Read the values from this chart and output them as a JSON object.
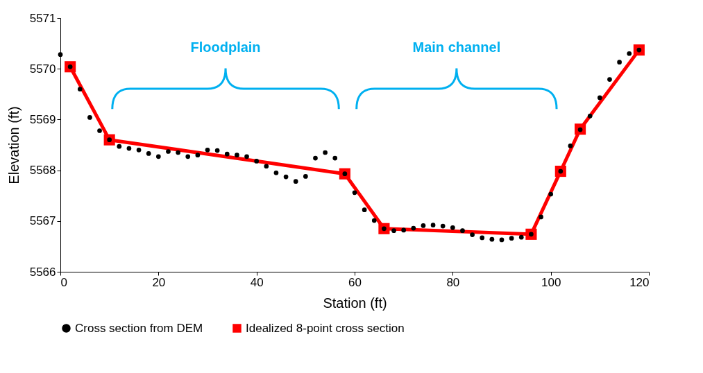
{
  "chart_data": {
    "type": "scatter",
    "xlabel": "Station (ft)",
    "ylabel": "Elevation (ft)",
    "xlim": [
      0,
      120
    ],
    "xticks": [
      0,
      20,
      40,
      60,
      80,
      100,
      120
    ],
    "ylim": [
      5566,
      5571
    ],
    "yticks": [
      5566,
      5567,
      5568,
      5569,
      5570,
      5571
    ],
    "grid": false,
    "legend": "bottom",
    "annotations": [
      "Floodplain",
      "Main channel"
    ],
    "series": [
      {
        "name": "Cross section from DEM",
        "marker": "circle",
        "color": "#000000",
        "x": [
          0,
          2,
          4,
          6,
          8,
          10,
          12,
          14,
          16,
          18,
          20,
          22,
          24,
          26,
          28,
          30,
          32,
          34,
          36,
          38,
          40,
          42,
          44,
          46,
          48,
          50,
          52,
          54,
          56,
          58,
          60,
          62,
          64,
          66,
          68,
          70,
          72,
          74,
          76,
          78,
          80,
          82,
          84,
          86,
          88,
          90,
          92,
          94,
          96,
          98,
          100,
          102,
          104,
          106,
          108,
          110,
          112,
          114,
          116,
          118
        ],
        "values": [
          5570.28,
          5570.04,
          5569.6,
          5569.04,
          5568.78,
          5568.6,
          5568.47,
          5568.43,
          5568.4,
          5568.33,
          5568.27,
          5568.37,
          5568.35,
          5568.27,
          5568.3,
          5568.4,
          5568.39,
          5568.32,
          5568.3,
          5568.27,
          5568.18,
          5568.08,
          5567.95,
          5567.87,
          5567.78,
          5567.88,
          5568.24,
          5568.35,
          5568.24,
          5567.93,
          5567.56,
          5567.22,
          5567.01,
          5566.85,
          5566.81,
          5566.82,
          5566.86,
          5566.91,
          5566.92,
          5566.9,
          5566.87,
          5566.81,
          5566.73,
          5566.67,
          5566.64,
          5566.63,
          5566.66,
          5566.68,
          5566.74,
          5567.08,
          5567.53,
          5567.98,
          5568.48,
          5568.8,
          5569.07,
          5569.43,
          5569.79,
          5570.13,
          5570.3,
          5570.37
        ]
      },
      {
        "name": "Idealized 8-point cross section",
        "type": "line",
        "marker": "square",
        "color": "#ff0000",
        "x": [
          2,
          10,
          58,
          66,
          96,
          102,
          106,
          118
        ],
        "values": [
          5570.04,
          5568.6,
          5567.93,
          5566.85,
          5566.74,
          5567.98,
          5568.81,
          5570.37
        ]
      }
    ]
  }
}
